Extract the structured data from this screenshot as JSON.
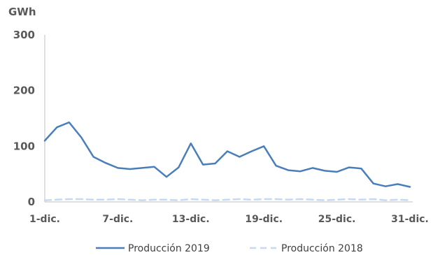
{
  "chart_data": {
    "type": "line",
    "unit_label": "GWh",
    "ylim": [
      0,
      300
    ],
    "yticks": [
      0,
      100,
      200,
      300
    ],
    "x": [
      "1-dic.",
      "2-dic.",
      "3-dic.",
      "4-dic.",
      "5-dic.",
      "6-dic.",
      "7-dic.",
      "8-dic.",
      "9-dic.",
      "10-dic.",
      "11-dic.",
      "12-dic.",
      "13-dic.",
      "14-dic.",
      "15-dic.",
      "16-dic.",
      "17-dic.",
      "18-dic.",
      "19-dic.",
      "20-dic.",
      "21-dic.",
      "22-dic.",
      "23-dic.",
      "24-dic.",
      "25-dic.",
      "26-dic.",
      "27-dic.",
      "28-dic.",
      "29-dic.",
      "30-dic.",
      "31-dic."
    ],
    "xtick_labels": [
      "1-dic.",
      "7-dic.",
      "13-dic.",
      "19-dic.",
      "25-dic.",
      "31-dic."
    ],
    "grid": false,
    "legend_position": "bottom",
    "series": [
      {
        "name": "Producción 2019",
        "color": "#4a7ebb",
        "style": "solid",
        "values": [
          110,
          134,
          143,
          116,
          81,
          70,
          61,
          59,
          61,
          63,
          45,
          62,
          105,
          67,
          69,
          91,
          81,
          91,
          100,
          65,
          57,
          55,
          61,
          56,
          54,
          62,
          60,
          33,
          28,
          32,
          27
        ]
      },
      {
        "name": "Producción 2018",
        "color": "#c6d9f1",
        "style": "dashed",
        "values": [
          3,
          4,
          5,
          5,
          4,
          4,
          5,
          4,
          3,
          4,
          4,
          3,
          5,
          4,
          3,
          4,
          5,
          4,
          5,
          5,
          4,
          5,
          4,
          3,
          4,
          5,
          4,
          5,
          3,
          4,
          3
        ]
      }
    ]
  }
}
